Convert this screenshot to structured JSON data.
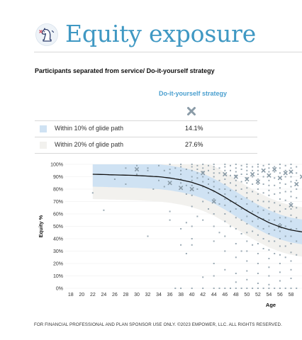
{
  "header": {
    "title": "Equity exposure"
  },
  "subtitle": "Participants separated from service/ Do-it-yourself strategy",
  "strategy_column": {
    "label": "Do-it-yourself strategy",
    "icon": "x-icon",
    "icon_color": "#8a9ba7"
  },
  "legend_rows": [
    {
      "label": "Within 10% of glide path",
      "value": "14.1%",
      "color": "#cfe2f3"
    },
    {
      "label": "Within 20% of glide path",
      "value": "27.6%",
      "color": "#f2f1ee"
    }
  ],
  "chart_data": {
    "type": "scatter",
    "title": "",
    "xlabel": "Age",
    "ylabel": "Equity %",
    "xlim": [
      17,
      60
    ],
    "ylim": [
      0,
      100
    ],
    "x_ticks": [
      18,
      20,
      22,
      24,
      26,
      28,
      30,
      32,
      34,
      36,
      38,
      40,
      42,
      44,
      46,
      48,
      50,
      52,
      54,
      56,
      58
    ],
    "y_ticks": [
      0,
      10,
      20,
      30,
      40,
      50,
      60,
      70,
      80,
      90,
      100
    ],
    "y_tick_labels": [
      "0%",
      "10%",
      "20%",
      "30%",
      "40%",
      "50%",
      "60%",
      "70%",
      "80%",
      "90%",
      "100%"
    ],
    "grid": "horizontal",
    "glide_path": {
      "x": [
        22,
        26,
        30,
        34,
        36,
        38,
        40,
        42,
        44,
        46,
        48,
        50,
        52,
        54,
        56,
        58,
        60
      ],
      "y": [
        92,
        91.5,
        91,
        90,
        89,
        87.5,
        85.5,
        82.5,
        78.5,
        73.5,
        68,
        62.5,
        57.5,
        53,
        49.5,
        47,
        45.5
      ]
    },
    "band_10": {
      "label": "Within 10% of glide path",
      "width": 10,
      "color": "#cfe2f3"
    },
    "band_20": {
      "label": "Within 20% of glide path",
      "width": 20,
      "color": "#f2f1ee"
    },
    "points": [
      [
        22,
        77
      ],
      [
        24,
        63
      ],
      [
        26,
        88
      ],
      [
        28,
        97
      ],
      [
        28,
        84
      ],
      [
        30,
        99
      ],
      [
        30,
        92
      ],
      [
        32,
        97
      ],
      [
        32,
        95
      ],
      [
        32,
        42
      ],
      [
        33,
        80
      ],
      [
        34,
        99
      ],
      [
        34,
        87
      ],
      [
        35,
        95
      ],
      [
        35,
        82
      ],
      [
        36,
        100
      ],
      [
        36,
        96
      ],
      [
        36,
        93
      ],
      [
        36,
        62
      ],
      [
        36,
        55
      ],
      [
        37,
        97
      ],
      [
        37,
        0
      ],
      [
        38,
        100
      ],
      [
        38,
        98
      ],
      [
        38,
        95
      ],
      [
        38,
        92
      ],
      [
        38,
        88
      ],
      [
        38,
        85
      ],
      [
        38,
        48
      ],
      [
        38,
        35
      ],
      [
        38,
        0
      ],
      [
        39,
        96
      ],
      [
        39,
        83
      ],
      [
        39,
        76
      ],
      [
        39,
        53
      ],
      [
        39,
        28
      ],
      [
        40,
        100
      ],
      [
        40,
        98
      ],
      [
        40,
        95
      ],
      [
        40,
        90
      ],
      [
        40,
        87
      ],
      [
        40,
        83
      ],
      [
        40,
        75
      ],
      [
        40,
        66
      ],
      [
        40,
        50
      ],
      [
        40,
        40
      ],
      [
        40,
        35
      ],
      [
        40,
        0
      ],
      [
        41,
        99
      ],
      [
        41,
        96
      ],
      [
        41,
        93
      ],
      [
        41,
        89
      ],
      [
        41,
        80
      ],
      [
        41,
        58
      ],
      [
        42,
        100
      ],
      [
        42,
        97
      ],
      [
        42,
        94
      ],
      [
        42,
        90
      ],
      [
        42,
        86
      ],
      [
        42,
        82
      ],
      [
        42,
        70
      ],
      [
        42,
        55
      ],
      [
        42,
        9
      ],
      [
        42,
        0
      ],
      [
        43,
        99
      ],
      [
        43,
        95
      ],
      [
        43,
        88
      ],
      [
        43,
        84
      ],
      [
        43,
        77
      ],
      [
        43,
        64
      ],
      [
        44,
        100
      ],
      [
        44,
        98
      ],
      [
        44,
        96
      ],
      [
        44,
        93
      ],
      [
        44,
        90
      ],
      [
        44,
        86
      ],
      [
        44,
        82
      ],
      [
        44,
        78
      ],
      [
        44,
        72
      ],
      [
        44,
        60
      ],
      [
        44,
        50
      ],
      [
        44,
        38
      ],
      [
        44,
        20
      ],
      [
        44,
        10
      ],
      [
        44,
        0
      ],
      [
        45,
        97
      ],
      [
        45,
        93
      ],
      [
        45,
        87
      ],
      [
        45,
        80
      ],
      [
        45,
        68
      ],
      [
        45,
        45
      ],
      [
        45,
        0
      ],
      [
        46,
        100
      ],
      [
        46,
        98
      ],
      [
        46,
        95
      ],
      [
        46,
        92
      ],
      [
        46,
        88
      ],
      [
        46,
        84
      ],
      [
        46,
        80
      ],
      [
        46,
        76
      ],
      [
        46,
        72
      ],
      [
        46,
        67
      ],
      [
        46,
        60
      ],
      [
        46,
        54
      ],
      [
        46,
        42
      ],
      [
        46,
        30
      ],
      [
        46,
        15
      ],
      [
        46,
        0
      ],
      [
        47,
        99
      ],
      [
        47,
        95
      ],
      [
        47,
        91
      ],
      [
        47,
        85
      ],
      [
        47,
        79
      ],
      [
        47,
        70
      ],
      [
        47,
        62
      ],
      [
        47,
        50
      ],
      [
        47,
        0
      ],
      [
        48,
        100
      ],
      [
        48,
        97
      ],
      [
        48,
        94
      ],
      [
        48,
        91
      ],
      [
        48,
        87
      ],
      [
        48,
        83
      ],
      [
        48,
        79
      ],
      [
        48,
        74
      ],
      [
        48,
        69
      ],
      [
        48,
        64
      ],
      [
        48,
        57
      ],
      [
        48,
        48
      ],
      [
        48,
        36
      ],
      [
        48,
        25
      ],
      [
        48,
        12
      ],
      [
        48,
        5
      ],
      [
        48,
        0
      ],
      [
        49,
        99
      ],
      [
        49,
        96
      ],
      [
        49,
        92
      ],
      [
        49,
        86
      ],
      [
        49,
        80
      ],
      [
        49,
        72
      ],
      [
        49,
        64
      ],
      [
        49,
        55
      ],
      [
        49,
        44
      ],
      [
        49,
        30
      ],
      [
        49,
        0
      ],
      [
        50,
        100
      ],
      [
        50,
        98
      ],
      [
        50,
        95
      ],
      [
        50,
        92
      ],
      [
        50,
        89
      ],
      [
        50,
        85
      ],
      [
        50,
        81
      ],
      [
        50,
        77
      ],
      [
        50,
        73
      ],
      [
        50,
        68
      ],
      [
        50,
        63
      ],
      [
        50,
        58
      ],
      [
        50,
        52
      ],
      [
        50,
        45
      ],
      [
        50,
        38
      ],
      [
        50,
        30
      ],
      [
        50,
        22
      ],
      [
        50,
        14
      ],
      [
        50,
        7
      ],
      [
        50,
        0
      ],
      [
        51,
        98
      ],
      [
        51,
        95
      ],
      [
        51,
        90
      ],
      [
        51,
        84
      ],
      [
        51,
        78
      ],
      [
        51,
        70
      ],
      [
        51,
        62
      ],
      [
        51,
        54
      ],
      [
        51,
        46
      ],
      [
        51,
        35
      ],
      [
        51,
        0
      ],
      [
        52,
        100
      ],
      [
        52,
        98
      ],
      [
        52,
        95
      ],
      [
        52,
        92
      ],
      [
        52,
        88
      ],
      [
        52,
        84
      ],
      [
        52,
        80
      ],
      [
        52,
        76
      ],
      [
        52,
        71
      ],
      [
        52,
        66
      ],
      [
        52,
        61
      ],
      [
        52,
        56
      ],
      [
        52,
        50
      ],
      [
        52,
        43
      ],
      [
        52,
        36
      ],
      [
        52,
        28
      ],
      [
        52,
        20
      ],
      [
        52,
        12
      ],
      [
        52,
        4
      ],
      [
        52,
        0
      ],
      [
        53,
        99
      ],
      [
        53,
        95
      ],
      [
        53,
        90
      ],
      [
        53,
        84
      ],
      [
        53,
        77
      ],
      [
        53,
        70
      ],
      [
        53,
        63
      ],
      [
        53,
        56
      ],
      [
        53,
        48
      ],
      [
        53,
        40
      ],
      [
        53,
        32
      ],
      [
        53,
        0
      ],
      [
        54,
        100
      ],
      [
        54,
        97
      ],
      [
        54,
        94
      ],
      [
        54,
        91
      ],
      [
        54,
        87
      ],
      [
        54,
        83
      ],
      [
        54,
        79
      ],
      [
        54,
        75
      ],
      [
        54,
        70
      ],
      [
        54,
        65
      ],
      [
        54,
        60
      ],
      [
        54,
        55
      ],
      [
        54,
        50
      ],
      [
        54,
        44
      ],
      [
        54,
        38
      ],
      [
        54,
        31
      ],
      [
        54,
        24
      ],
      [
        54,
        17
      ],
      [
        54,
        10
      ],
      [
        54,
        3
      ],
      [
        54,
        0
      ],
      [
        55,
        98
      ],
      [
        55,
        94
      ],
      [
        55,
        89
      ],
      [
        55,
        83
      ],
      [
        55,
        76
      ],
      [
        55,
        69
      ],
      [
        55,
        62
      ],
      [
        55,
        55
      ],
      [
        55,
        47
      ],
      [
        55,
        38
      ],
      [
        55,
        28
      ],
      [
        55,
        0
      ],
      [
        56,
        100
      ],
      [
        56,
        97
      ],
      [
        56,
        93
      ],
      [
        56,
        89
      ],
      [
        56,
        85
      ],
      [
        56,
        81
      ],
      [
        56,
        77
      ],
      [
        56,
        72
      ],
      [
        56,
        67
      ],
      [
        56,
        62
      ],
      [
        56,
        57
      ],
      [
        56,
        52
      ],
      [
        56,
        46
      ],
      [
        56,
        40
      ],
      [
        56,
        34
      ],
      [
        56,
        27
      ],
      [
        56,
        20
      ],
      [
        56,
        13
      ],
      [
        56,
        6
      ],
      [
        56,
        0
      ],
      [
        57,
        99
      ],
      [
        57,
        95
      ],
      [
        57,
        90
      ],
      [
        57,
        84
      ],
      [
        57,
        78
      ],
      [
        57,
        71
      ],
      [
        57,
        64
      ],
      [
        57,
        57
      ],
      [
        57,
        50
      ],
      [
        57,
        42
      ],
      [
        57,
        34
      ],
      [
        57,
        25
      ],
      [
        57,
        0
      ],
      [
        58,
        100
      ],
      [
        58,
        97
      ],
      [
        58,
        94
      ],
      [
        58,
        90
      ],
      [
        58,
        86
      ],
      [
        58,
        82
      ],
      [
        58,
        78
      ],
      [
        58,
        74
      ],
      [
        58,
        69
      ],
      [
        58,
        64
      ],
      [
        58,
        59
      ],
      [
        58,
        54
      ],
      [
        58,
        48
      ],
      [
        58,
        42
      ],
      [
        58,
        36
      ],
      [
        58,
        29
      ],
      [
        58,
        22
      ],
      [
        58,
        15
      ],
      [
        58,
        8
      ],
      [
        58,
        0
      ],
      [
        59,
        98
      ],
      [
        59,
        93
      ],
      [
        59,
        87
      ],
      [
        59,
        80
      ],
      [
        59,
        73
      ],
      [
        59,
        65
      ],
      [
        59,
        57
      ],
      [
        59,
        48
      ],
      [
        59,
        38
      ],
      [
        59,
        27
      ],
      [
        59,
        0
      ]
    ],
    "x_markers": [
      [
        30,
        96
      ],
      [
        36,
        85
      ],
      [
        38,
        81
      ],
      [
        40,
        80
      ],
      [
        42,
        93
      ],
      [
        44,
        70
      ],
      [
        46,
        92
      ],
      [
        48,
        90
      ],
      [
        50,
        88
      ],
      [
        51,
        92
      ],
      [
        52,
        86
      ],
      [
        53,
        95
      ],
      [
        54,
        91
      ],
      [
        55,
        96
      ],
      [
        56,
        89
      ],
      [
        57,
        93
      ],
      [
        58,
        94
      ],
      [
        59,
        84
      ],
      [
        60,
        90
      ],
      [
        56,
        50
      ],
      [
        58,
        67
      ]
    ],
    "point_color": "#8a9ba7"
  },
  "footer": "FOR FINANCIAL PROFESSIONAL AND PLAN SPONSOR USE ONLY. ©2023 EMPOWER, LLC. ALL RIGHTS RESERVED."
}
